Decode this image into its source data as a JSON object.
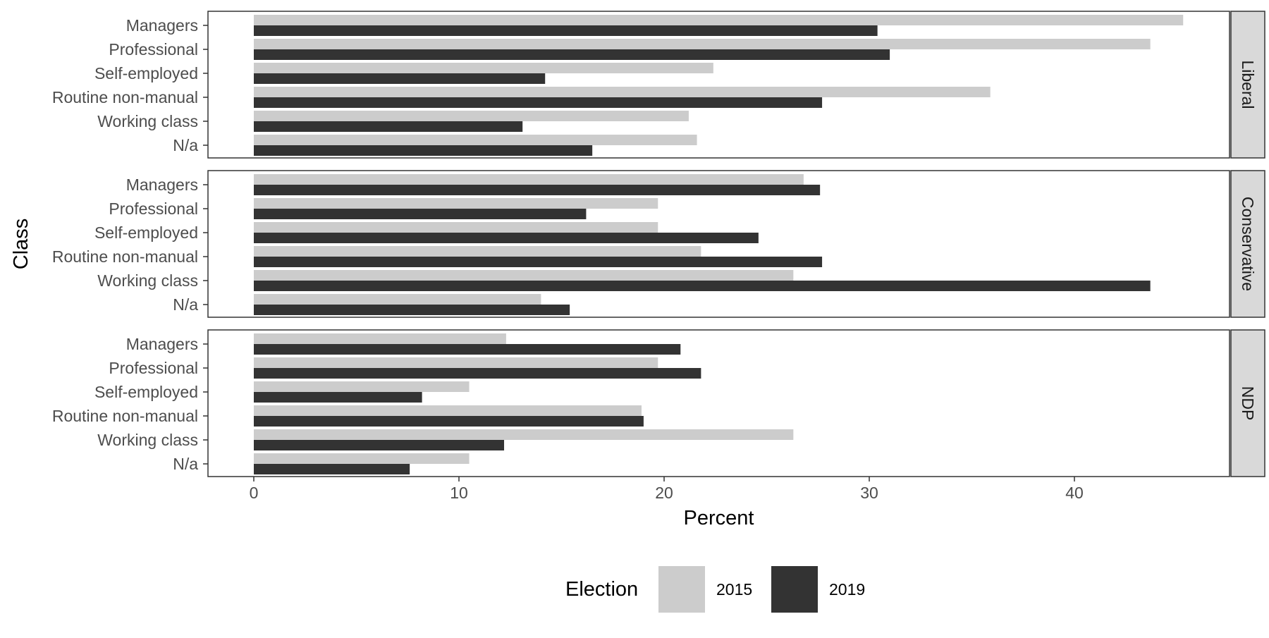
{
  "chart_data": {
    "type": "bar",
    "orientation": "horizontal",
    "xlabel": "Percent",
    "ylabel": "Class",
    "xlim": [
      0,
      47
    ],
    "x_ticks": [
      0,
      10,
      20,
      30,
      40
    ],
    "categories": [
      "Managers",
      "Professional",
      "Self-employed",
      "Routine non-manual",
      "Working class",
      "N/a"
    ],
    "legend": {
      "title": "Election",
      "position": "bottom",
      "entries": [
        {
          "label": "2015",
          "color": "#cccccc"
        },
        {
          "label": "2019",
          "color": "#333333"
        }
      ]
    },
    "grid": false,
    "panels": [
      {
        "label": "Liberal",
        "series": [
          {
            "name": "2015",
            "values": [
              45.3,
              43.7,
              22.4,
              35.9,
              21.2,
              21.6
            ]
          },
          {
            "name": "2019",
            "values": [
              30.4,
              31.0,
              14.2,
              27.7,
              13.1,
              16.5
            ]
          }
        ]
      },
      {
        "label": "Conservative",
        "series": [
          {
            "name": "2015",
            "values": [
              26.8,
              19.7,
              19.7,
              21.8,
              26.3,
              14.0
            ]
          },
          {
            "name": "2019",
            "values": [
              27.6,
              16.2,
              24.6,
              27.7,
              43.7,
              15.4
            ]
          }
        ]
      },
      {
        "label": "NDP",
        "series": [
          {
            "name": "2015",
            "values": [
              12.3,
              19.7,
              10.5,
              18.9,
              26.3,
              10.5
            ]
          },
          {
            "name": "2019",
            "values": [
              20.8,
              21.8,
              8.2,
              19.0,
              12.2,
              7.6
            ]
          }
        ]
      }
    ]
  }
}
